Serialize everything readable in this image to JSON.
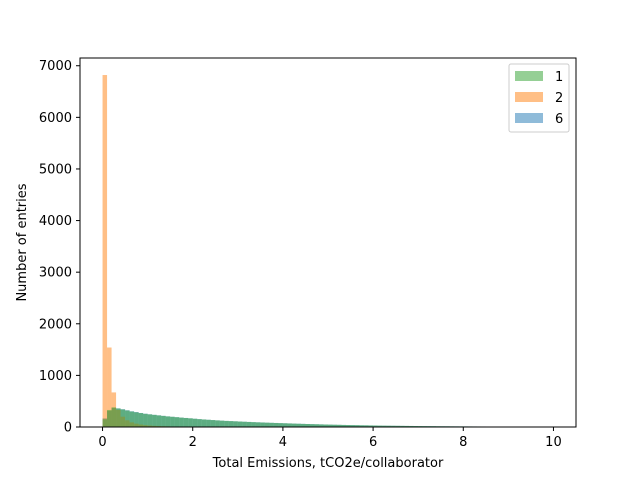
{
  "chart_data": {
    "type": "histogram",
    "xlabel": "Total Emissions, tCO2e/collaborator",
    "ylabel": "Number of entries",
    "xlim": [
      -0.5,
      10.5
    ],
    "ylim": [
      0,
      7150
    ],
    "xticks": [
      0,
      2,
      4,
      6,
      8,
      10
    ],
    "yticks": [
      0,
      1000,
      2000,
      3000,
      4000,
      5000,
      6000,
      7000
    ],
    "grid": false,
    "legend_position": "top-right",
    "bins": {
      "start": 0.0,
      "width": 0.1,
      "count": 100
    },
    "series": [
      {
        "name": "1",
        "color": "#2ca02c",
        "alpha": 0.5,
        "values": [
          150,
          330,
          380,
          360,
          340,
          320,
          300,
          285,
          270,
          255,
          245,
          235,
          225,
          215,
          205,
          198,
          190,
          182,
          175,
          168,
          160,
          152,
          146,
          140,
          134,
          128,
          123,
          118,
          114,
          110,
          106,
          102,
          98,
          94,
          90,
          87,
          84,
          81,
          78,
          75,
          72,
          69,
          66,
          63,
          60,
          58,
          55,
          53,
          50,
          48,
          46,
          44,
          42,
          40,
          38,
          36,
          35,
          33,
          32,
          30,
          29,
          27,
          26,
          25,
          24,
          23,
          22,
          21,
          20,
          19,
          18,
          17,
          16,
          16,
          15,
          14,
          14,
          13,
          12,
          12,
          11,
          11,
          10,
          10,
          9,
          9,
          9,
          8,
          8,
          8,
          7,
          7,
          7,
          6,
          6,
          6,
          6,
          5,
          5,
          5
        ]
      },
      {
        "name": "2",
        "color": "#ff7f0e",
        "alpha": 0.5,
        "values": [
          6820,
          1540,
          670,
          330,
          200,
          130,
          90,
          65,
          48,
          36,
          28,
          22,
          18,
          15,
          12,
          10,
          9,
          8,
          7,
          6,
          5,
          5,
          4,
          4,
          3,
          3,
          3,
          2,
          2,
          2,
          2,
          2,
          1,
          1,
          1,
          1,
          1,
          1,
          1,
          1,
          1,
          1,
          1,
          1,
          1,
          0,
          0,
          0,
          0,
          0,
          0,
          0,
          0,
          0,
          0,
          0,
          0,
          0,
          0,
          0,
          0,
          0,
          0,
          0,
          0,
          0,
          0,
          0,
          0,
          0,
          0,
          0,
          0,
          0,
          0,
          0,
          0,
          0,
          0,
          0,
          0,
          0,
          0,
          0,
          0,
          0,
          0,
          0,
          0,
          0,
          0,
          0,
          0,
          0,
          0,
          0,
          0,
          0,
          0,
          0
        ]
      },
      {
        "name": "6",
        "color": "#1f77b4",
        "alpha": 0.5,
        "values": [
          170,
          310,
          370,
          360,
          345,
          325,
          305,
          290,
          272,
          258,
          246,
          236,
          226,
          216,
          206,
          198,
          190,
          182,
          175,
          168,
          160,
          153,
          146,
          140,
          134,
          128,
          123,
          118,
          114,
          110,
          106,
          102,
          98,
          94,
          91,
          88,
          84,
          81,
          78,
          75,
          72,
          69,
          66,
          64,
          61,
          58,
          56,
          53,
          51,
          48,
          46,
          44,
          42,
          40,
          38,
          37,
          35,
          33,
          32,
          30,
          29,
          27,
          26,
          25,
          24,
          23,
          22,
          21,
          20,
          19,
          18,
          17,
          17,
          16,
          15,
          15,
          14,
          13,
          13,
          12,
          12,
          11,
          11,
          10,
          10,
          9,
          9,
          9,
          8,
          8,
          8,
          7,
          7,
          7,
          7,
          6,
          6,
          6,
          6,
          5
        ]
      }
    ]
  }
}
